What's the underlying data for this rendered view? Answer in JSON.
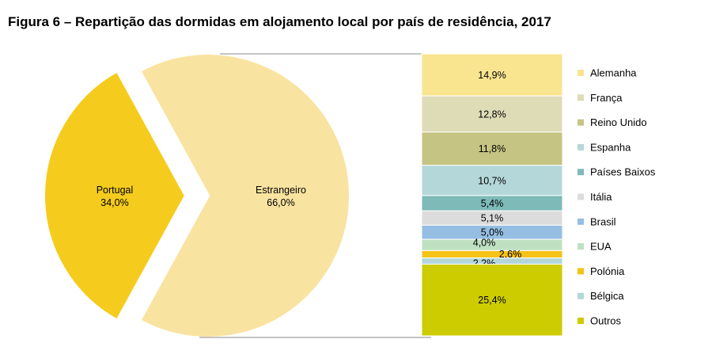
{
  "title": "Figura 6 – Repartição das dormidas em alojamento local por país de residência, 2017",
  "chart_data": [
    {
      "type": "pie",
      "slices": [
        {
          "label": "Portugal",
          "value": 34.0,
          "value_label": "34,0%",
          "color": "#F5CC1D"
        },
        {
          "label": "Estrangeiro",
          "value": 66.0,
          "value_label": "66,0%",
          "color": "#F9E3A0"
        }
      ]
    },
    {
      "type": "bar",
      "stacked": true,
      "legend_position": "right",
      "segments": [
        {
          "label": "Alemanha",
          "value": 14.9,
          "value_label": "14,9%",
          "color": "#F9E590"
        },
        {
          "label": "França",
          "value": 12.8,
          "value_label": "12,8%",
          "color": "#DEDCB7"
        },
        {
          "label": "Reino Unido",
          "value": 11.8,
          "value_label": "11,8%",
          "color": "#C6C482"
        },
        {
          "label": "Espanha",
          "value": 10.7,
          "value_label": "10,7%",
          "color": "#B4D7D9"
        },
        {
          "label": "Países Baixos",
          "value": 5.4,
          "value_label": "5,4%",
          "color": "#7DBAB8"
        },
        {
          "label": "Itália",
          "value": 5.1,
          "value_label": "5,1%",
          "color": "#DCDCDC"
        },
        {
          "label": "Brasil",
          "value": 5.0,
          "value_label": "5,0%",
          "color": "#96BEE2"
        },
        {
          "label": "EUA",
          "value": 4.0,
          "value_label": "4,0%",
          "color": "#BFE1C2"
        },
        {
          "label": "Polónia",
          "value": 2.6,
          "value_label": "2,6%",
          "color": "#F5C218"
        },
        {
          "label": "Bélgica",
          "value": 2.2,
          "value_label": "2,2%",
          "color": "#B3D7D8"
        },
        {
          "label": "Outros",
          "value": 25.4,
          "value_label": "25,4%",
          "color": "#CCCC00"
        }
      ]
    }
  ]
}
